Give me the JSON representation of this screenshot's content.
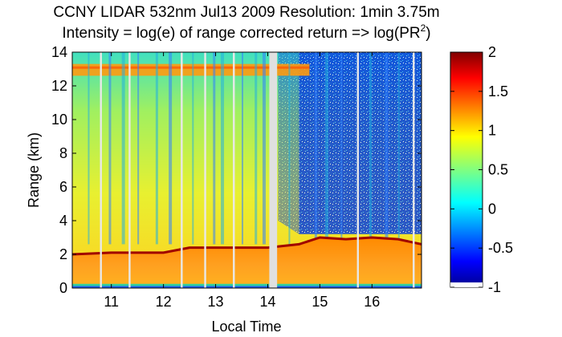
{
  "chart_data": {
    "type": "heatmap",
    "title_line1": "CCNY LIDAR 532nm Jul13 2009 Resolution: 1min 3.75m",
    "title_line2_prefix": "Intensity = log(e) of range corrected return => log(PR",
    "title_line2_superscript": "2",
    "title_line2_suffix": ")",
    "xlabel": "Local Time",
    "ylabel": "Range (km)",
    "xlim": [
      10.25,
      16.95
    ],
    "ylim": [
      0,
      14
    ],
    "x_ticks": [
      {
        "value": 11,
        "label": "11"
      },
      {
        "value": 12,
        "label": "12"
      },
      {
        "value": 13,
        "label": "13"
      },
      {
        "value": 14,
        "label": "14"
      },
      {
        "value": 15,
        "label": "15"
      },
      {
        "value": 16,
        "label": "16"
      }
    ],
    "y_ticks": [
      {
        "value": 0,
        "label": "0"
      },
      {
        "value": 2,
        "label": "2"
      },
      {
        "value": 4,
        "label": "4"
      },
      {
        "value": 6,
        "label": "6"
      },
      {
        "value": 8,
        "label": "8"
      },
      {
        "value": 10,
        "label": "10"
      },
      {
        "value": 12,
        "label": "12"
      },
      {
        "value": 14,
        "label": "14"
      }
    ],
    "colorbar": {
      "colormap": "jet",
      "range": [
        -1,
        2
      ],
      "ticks": [
        {
          "value": 2,
          "label": "2"
        },
        {
          "value": 1.5,
          "label": "1.5"
        },
        {
          "value": 1,
          "label": "1"
        },
        {
          "value": 0.5,
          "label": "0.5"
        },
        {
          "value": 0,
          "label": "0"
        },
        {
          "value": -0.5,
          "label": "-0.5"
        },
        {
          "value": -1,
          "label": "-1"
        }
      ]
    },
    "boundary_layer_top_km": [
      {
        "time": 10.25,
        "range": 2.0
      },
      {
        "time": 11.0,
        "range": 2.1
      },
      {
        "time": 12.0,
        "range": 2.1
      },
      {
        "time": 12.5,
        "range": 2.4
      },
      {
        "time": 13.0,
        "range": 2.4
      },
      {
        "time": 14.0,
        "range": 2.4
      },
      {
        "time": 14.6,
        "range": 2.6
      },
      {
        "time": 15.0,
        "range": 3.0
      },
      {
        "time": 15.5,
        "range": 2.9
      },
      {
        "time": 16.0,
        "range": 3.0
      },
      {
        "time": 16.5,
        "range": 2.9
      },
      {
        "time": 16.95,
        "range": 2.6
      }
    ],
    "cirrus_layer_km": {
      "time_range": [
        10.25,
        14.8
      ],
      "bottom": 12.6,
      "top": 13.3
    },
    "data_gaps_local_time": [
      10.8,
      11.35,
      12.35,
      12.8,
      13.35,
      14.1,
      15.73,
      16.8
    ],
    "wide_gap": {
      "start": 14.03,
      "end": 14.18
    }
  }
}
